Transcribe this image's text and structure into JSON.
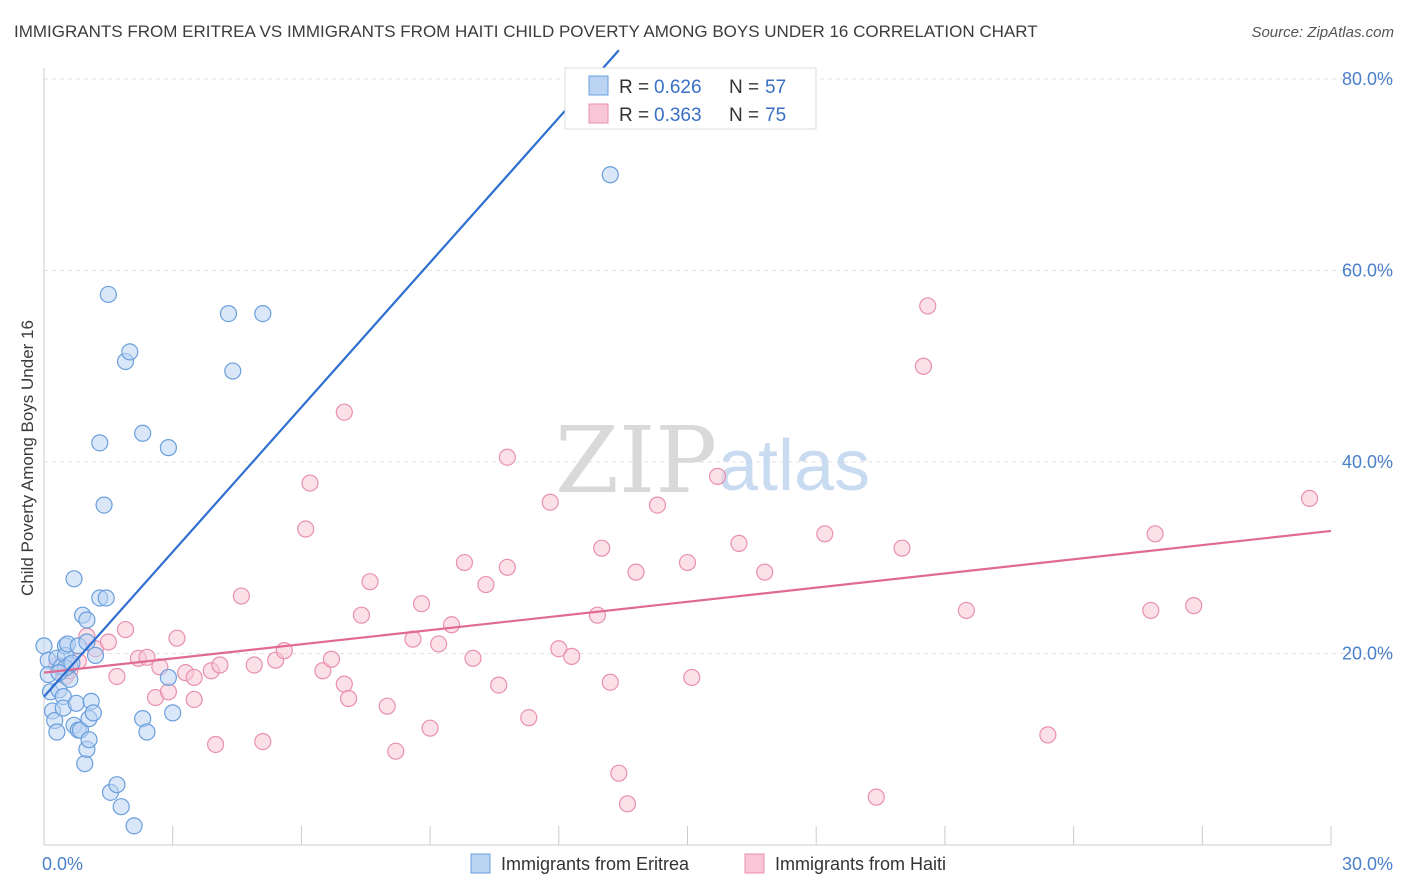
{
  "title": "IMMIGRANTS FROM ERITREA VS IMMIGRANTS FROM HAITI CHILD POVERTY AMONG BOYS UNDER 16 CORRELATION CHART",
  "source": "Source: ZipAtlas.com",
  "watermark": {
    "zip": "ZIP",
    "atlas": "atlas"
  },
  "legend": {
    "r_label": "R =",
    "n_label": "N =",
    "rows": [
      {
        "r": "0.626",
        "n": "57"
      },
      {
        "r": "0.363",
        "n": "75"
      }
    ]
  },
  "colors": {
    "eritrea_fill": "#bcd4f4",
    "eritrea_stroke": "#6a9fdc",
    "eritrea_line": "#2f6fd0",
    "haiti_fill": "#f8c6d6",
    "haiti_stroke": "#e890ae",
    "haiti_line": "#e06a96",
    "tick_text": "#4a7fc9"
  },
  "chart_data": {
    "type": "scatter",
    "title": "IMMIGRANTS FROM ERITREA VS IMMIGRANTS FROM HAITI CHILD POVERTY AMONG BOYS UNDER 16 CORRELATION CHART",
    "xlabel": "",
    "ylabel": "Child Poverty Among Boys Under 16",
    "xlim": [
      0,
      30
    ],
    "ylim": [
      0,
      80
    ],
    "x_tick_labels": [
      "0.0%",
      "30.0%"
    ],
    "y_tick_labels": [
      "20.0%",
      "40.0%",
      "60.0%",
      "80.0%"
    ],
    "y_ticks": [
      20,
      40,
      60,
      80
    ],
    "grid": "horizontal dashed",
    "legend_position": "top-center",
    "series": [
      {
        "name": "Immigrants from Eritrea",
        "r": 0.626,
        "n": 57,
        "trend": {
          "x": [
            0,
            13.4
          ],
          "y": [
            15.5,
            83
          ]
        },
        "points": [
          [
            0.0,
            20.8
          ],
          [
            0.1,
            19.3
          ],
          [
            0.1,
            17.8
          ],
          [
            0.15,
            16.0
          ],
          [
            0.2,
            14.0
          ],
          [
            0.25,
            13.0
          ],
          [
            0.3,
            19.5
          ],
          [
            0.3,
            11.8
          ],
          [
            0.35,
            16.2
          ],
          [
            0.4,
            18.6
          ],
          [
            0.45,
            15.5
          ],
          [
            0.45,
            14.3
          ],
          [
            0.5,
            20.8
          ],
          [
            0.5,
            19.8
          ],
          [
            0.55,
            21.0
          ],
          [
            0.6,
            18.8
          ],
          [
            0.6,
            17.3
          ],
          [
            0.7,
            27.8
          ],
          [
            0.7,
            12.5
          ],
          [
            0.75,
            14.8
          ],
          [
            0.8,
            12.0
          ],
          [
            0.8,
            20.8
          ],
          [
            0.85,
            12.0
          ],
          [
            0.9,
            24.0
          ],
          [
            0.95,
            8.5
          ],
          [
            1.0,
            23.5
          ],
          [
            1.0,
            21.2
          ],
          [
            1.0,
            10.0
          ],
          [
            1.05,
            13.2
          ],
          [
            1.05,
            11.0
          ],
          [
            1.1,
            15.0
          ],
          [
            1.15,
            13.8
          ],
          [
            1.2,
            19.8
          ],
          [
            1.3,
            42.0
          ],
          [
            1.3,
            25.8
          ],
          [
            1.4,
            35.5
          ],
          [
            1.45,
            25.8
          ],
          [
            1.5,
            57.5
          ],
          [
            1.55,
            5.5
          ],
          [
            1.7,
            6.3
          ],
          [
            1.8,
            4.0
          ],
          [
            1.9,
            50.5
          ],
          [
            2.0,
            51.5
          ],
          [
            2.1,
            2.0
          ],
          [
            2.3,
            13.2
          ],
          [
            2.3,
            43.0
          ],
          [
            2.4,
            11.8
          ],
          [
            2.9,
            41.5
          ],
          [
            2.9,
            17.5
          ],
          [
            3.0,
            13.8
          ],
          [
            4.3,
            55.5
          ],
          [
            4.4,
            49.5
          ],
          [
            5.1,
            55.5
          ],
          [
            13.2,
            70.0
          ],
          [
            0.5,
            18.5
          ],
          [
            0.65,
            19.0
          ],
          [
            0.35,
            18.0
          ]
        ]
      },
      {
        "name": "Immigrants from Haiti",
        "r": 0.363,
        "n": 75,
        "trend": {
          "x": [
            0,
            30
          ],
          "y": [
            18.0,
            32.8
          ]
        },
        "points": [
          [
            0.3,
            18.8
          ],
          [
            0.5,
            17.6
          ],
          [
            0.6,
            18.2
          ],
          [
            0.8,
            19.2
          ],
          [
            1.0,
            21.8
          ],
          [
            1.2,
            20.5
          ],
          [
            1.5,
            21.2
          ],
          [
            1.7,
            17.6
          ],
          [
            1.9,
            22.5
          ],
          [
            2.2,
            19.5
          ],
          [
            2.4,
            19.6
          ],
          [
            2.6,
            15.4
          ],
          [
            2.7,
            18.6
          ],
          [
            2.9,
            16.0
          ],
          [
            3.1,
            21.6
          ],
          [
            3.3,
            18.0
          ],
          [
            3.5,
            17.5
          ],
          [
            3.5,
            15.2
          ],
          [
            3.9,
            18.2
          ],
          [
            4.0,
            10.5
          ],
          [
            4.1,
            18.8
          ],
          [
            4.6,
            26.0
          ],
          [
            4.9,
            18.8
          ],
          [
            5.1,
            10.8
          ],
          [
            5.4,
            19.3
          ],
          [
            5.6,
            20.3
          ],
          [
            6.1,
            33.0
          ],
          [
            6.2,
            37.8
          ],
          [
            6.5,
            18.2
          ],
          [
            6.7,
            19.4
          ],
          [
            7.0,
            16.8
          ],
          [
            7.0,
            45.2
          ],
          [
            7.1,
            15.3
          ],
          [
            7.4,
            24.0
          ],
          [
            7.6,
            27.5
          ],
          [
            8.0,
            14.5
          ],
          [
            8.2,
            9.8
          ],
          [
            8.6,
            21.5
          ],
          [
            8.8,
            25.2
          ],
          [
            9.0,
            12.2
          ],
          [
            9.2,
            21.0
          ],
          [
            9.5,
            23.0
          ],
          [
            9.8,
            29.5
          ],
          [
            10.0,
            19.5
          ],
          [
            10.3,
            27.2
          ],
          [
            10.6,
            16.7
          ],
          [
            10.8,
            29.0
          ],
          [
            10.8,
            40.5
          ],
          [
            11.3,
            13.3
          ],
          [
            11.8,
            35.8
          ],
          [
            12.0,
            20.5
          ],
          [
            12.3,
            19.7
          ],
          [
            12.9,
            24.0
          ],
          [
            13.2,
            17.0
          ],
          [
            13.4,
            7.5
          ],
          [
            13.6,
            4.3
          ],
          [
            13.8,
            28.5
          ],
          [
            14.3,
            35.5
          ],
          [
            15.0,
            29.5
          ],
          [
            15.1,
            17.5
          ],
          [
            15.7,
            38.5
          ],
          [
            16.2,
            31.5
          ],
          [
            16.8,
            28.5
          ],
          [
            18.2,
            32.5
          ],
          [
            19.4,
            5.0
          ],
          [
            20.0,
            31.0
          ],
          [
            20.5,
            50.0
          ],
          [
            20.6,
            56.3
          ],
          [
            21.5,
            24.5
          ],
          [
            23.4,
            11.5
          ],
          [
            25.8,
            24.5
          ],
          [
            25.9,
            32.5
          ],
          [
            26.8,
            25.0
          ],
          [
            29.5,
            36.2
          ],
          [
            13.0,
            31.0
          ]
        ]
      }
    ]
  },
  "bottom_legend": [
    "Immigrants from Eritrea",
    "Immigrants from Haiti"
  ]
}
